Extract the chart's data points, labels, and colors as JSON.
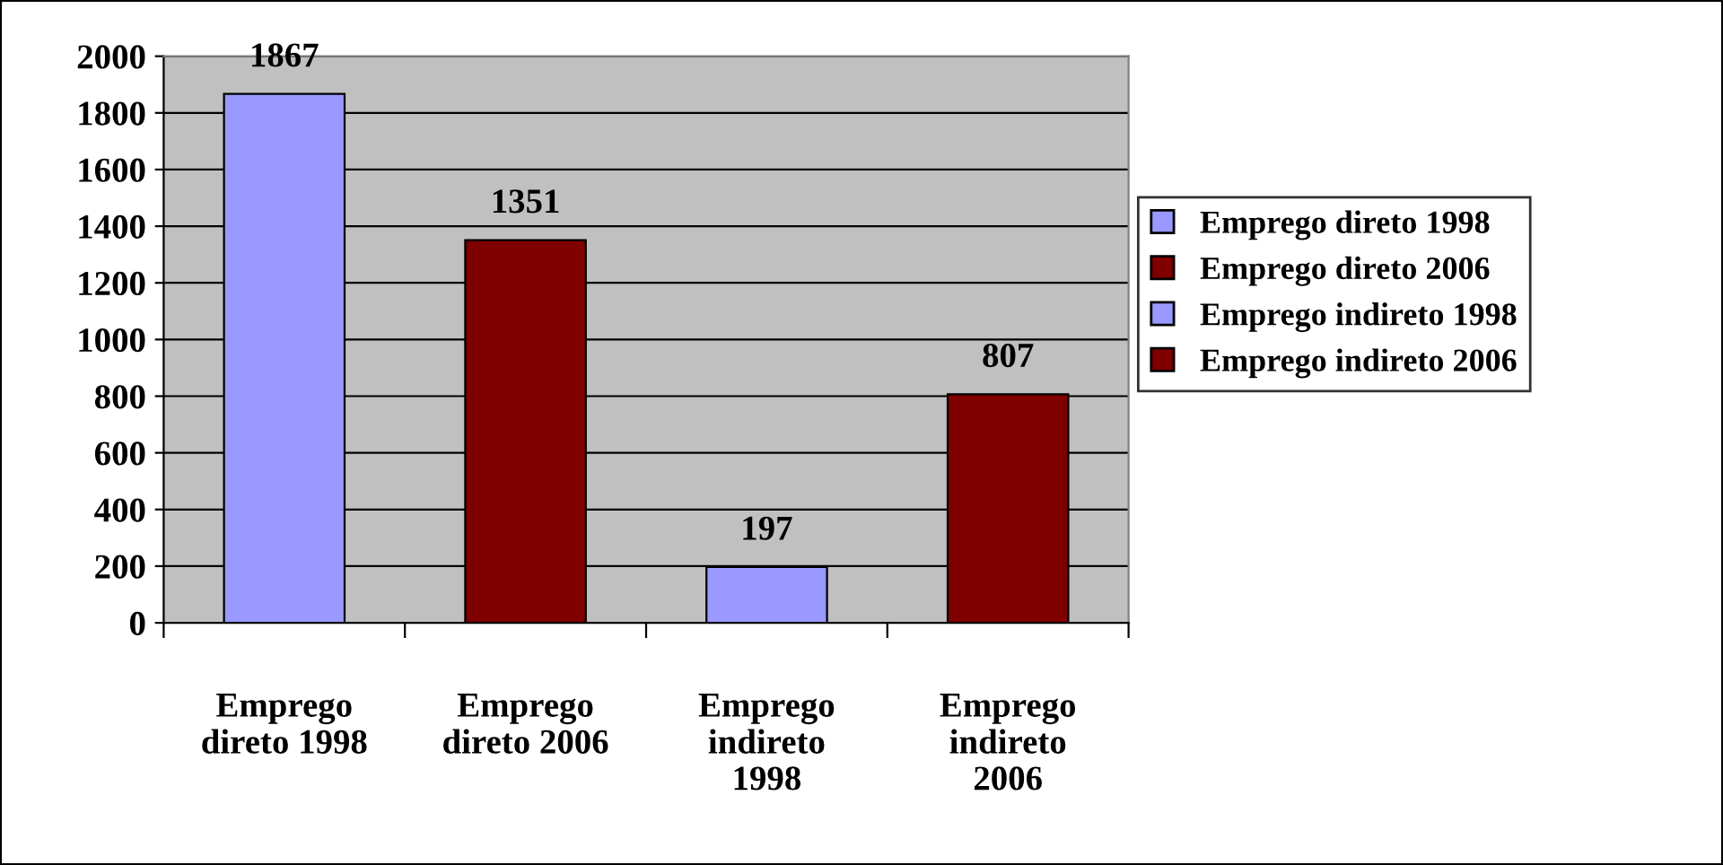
{
  "chart_data": {
    "type": "bar",
    "categories": [
      "Emprego\ndireto 1998",
      "Emprego\ndireto 2006",
      "Emprego\nindireto\n1998",
      "Emprego\nindireto\n2006"
    ],
    "series": [
      {
        "name": "Emprego direto 1998",
        "color": "#9999ff",
        "values": [
          1867,
          null,
          null,
          null
        ]
      },
      {
        "name": "Emprego direto 2006",
        "color": "#800000",
        "values": [
          null,
          1351,
          null,
          null
        ]
      },
      {
        "name": "Emprego indireto 1998",
        "color": "#9999ff",
        "values": [
          null,
          null,
          197,
          null
        ]
      },
      {
        "name": "Emprego indireto 2006",
        "color": "#800000",
        "values": [
          null,
          null,
          null,
          807
        ]
      }
    ],
    "ylim": [
      0,
      2000
    ],
    "yticks": [
      0,
      200,
      400,
      600,
      800,
      1000,
      1200,
      1400,
      1600,
      1800,
      2000
    ],
    "grid": "y",
    "legend": "right",
    "data_labels": true
  }
}
